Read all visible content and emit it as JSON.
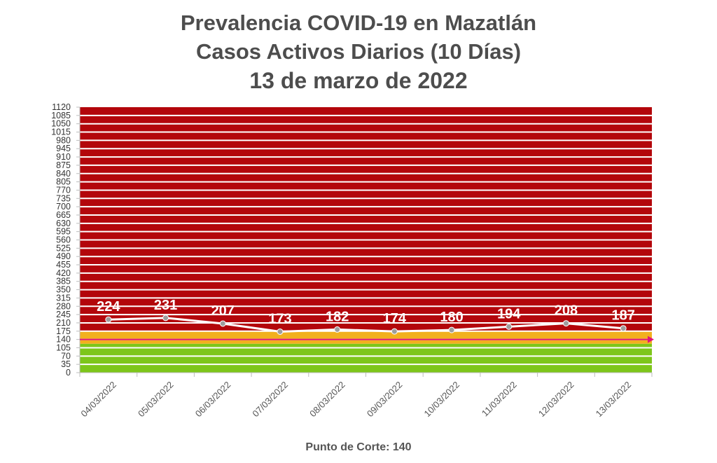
{
  "chart_data": {
    "type": "line",
    "title_lines": [
      "Prevalencia COVID-19 en Mazatlán",
      "Casos Activos Diarios (10 Días)",
      "13 de marzo de 2022"
    ],
    "categories": [
      "04/03/2022",
      "05/03/2022",
      "06/03/2022",
      "07/03/2022",
      "08/03/2022",
      "09/03/2022",
      "10/03/2022",
      "11/03/2022",
      "12/03/2022",
      "13/03/2022"
    ],
    "values": [
      224,
      231,
      207,
      173,
      182,
      174,
      180,
      194,
      208,
      187
    ],
    "ylim": [
      0,
      1120
    ],
    "ytick_step": 35,
    "cutoff_value": 140,
    "zones": [
      {
        "from": 0,
        "to": 122,
        "color": "#7dc61a"
      },
      {
        "from": 122,
        "to": 175,
        "color": "#f2b01e"
      },
      {
        "from": 175,
        "to": 1120,
        "color": "#b3060b"
      }
    ],
    "line_color": "#ffffff",
    "marker_color": "#9e9e9e",
    "cutoff_color": "#e0127a",
    "footnote": "Punto de Corte: 140"
  }
}
